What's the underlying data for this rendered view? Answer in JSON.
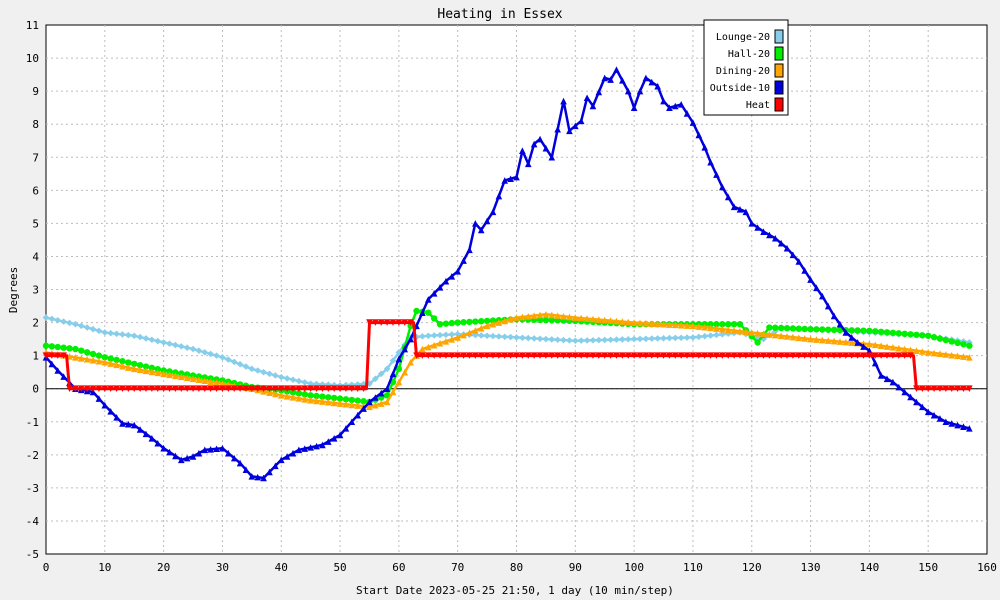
{
  "chart_data": {
    "type": "line",
    "title": "Heating in Essex",
    "xlabel": "Start Date 2023-05-25 21:50, 1 day (10 min/step)",
    "ylabel": "Degrees",
    "xlim": [
      0,
      160
    ],
    "ylim": [
      -5,
      11
    ],
    "xticks": [
      0,
      10,
      20,
      30,
      40,
      50,
      60,
      70,
      80,
      90,
      100,
      110,
      120,
      130,
      140,
      150,
      160
    ],
    "yticks": [
      -5,
      -4,
      -3,
      -2,
      -1,
      0,
      1,
      2,
      3,
      4,
      5,
      6,
      7,
      8,
      9,
      10,
      11
    ],
    "grid": true,
    "legend_position": "top-right",
    "series": [
      {
        "name": "Lounge-20",
        "color": "#87ceeb",
        "marker": "diamond",
        "points": [
          [
            0,
            2.15
          ],
          [
            5,
            1.95
          ],
          [
            10,
            1.7
          ],
          [
            15,
            1.6
          ],
          [
            20,
            1.4
          ],
          [
            25,
            1.2
          ],
          [
            30,
            0.95
          ],
          [
            35,
            0.6
          ],
          [
            40,
            0.35
          ],
          [
            45,
            0.15
          ],
          [
            50,
            0.1
          ],
          [
            55,
            0.15
          ],
          [
            58,
            0.6
          ],
          [
            60,
            1.1
          ],
          [
            62,
            1.55
          ],
          [
            65,
            1.6
          ],
          [
            70,
            1.65
          ],
          [
            80,
            1.55
          ],
          [
            90,
            1.45
          ],
          [
            100,
            1.5
          ],
          [
            110,
            1.55
          ],
          [
            118,
            1.7
          ],
          [
            122,
            1.5
          ],
          [
            125,
            1.85
          ],
          [
            130,
            1.8
          ],
          [
            140,
            1.7
          ],
          [
            150,
            1.6
          ],
          [
            157,
            1.4
          ]
        ]
      },
      {
        "name": "Hall-20",
        "color": "#00ee00",
        "marker": "circle",
        "points": [
          [
            0,
            1.3
          ],
          [
            5,
            1.2
          ],
          [
            10,
            0.95
          ],
          [
            15,
            0.75
          ],
          [
            20,
            0.55
          ],
          [
            25,
            0.4
          ],
          [
            30,
            0.25
          ],
          [
            35,
            0.05
          ],
          [
            40,
            -0.05
          ],
          [
            45,
            -0.2
          ],
          [
            50,
            -0.3
          ],
          [
            55,
            -0.4
          ],
          [
            58,
            -0.2
          ],
          [
            60,
            0.6
          ],
          [
            62,
            1.9
          ],
          [
            63,
            2.35
          ],
          [
            65,
            2.3
          ],
          [
            67,
            1.95
          ],
          [
            70,
            2.0
          ],
          [
            80,
            2.1
          ],
          [
            90,
            2.05
          ],
          [
            100,
            1.95
          ],
          [
            110,
            1.95
          ],
          [
            118,
            1.95
          ],
          [
            121,
            1.4
          ],
          [
            123,
            1.85
          ],
          [
            130,
            1.8
          ],
          [
            140,
            1.75
          ],
          [
            150,
            1.6
          ],
          [
            157,
            1.3
          ]
        ]
      },
      {
        "name": "Dining-20",
        "color": "#ffa500",
        "marker": "triangle",
        "points": [
          [
            0,
            1.1
          ],
          [
            5,
            0.95
          ],
          [
            10,
            0.8
          ],
          [
            15,
            0.6
          ],
          [
            20,
            0.45
          ],
          [
            25,
            0.3
          ],
          [
            30,
            0.15
          ],
          [
            35,
            0.0
          ],
          [
            40,
            -0.2
          ],
          [
            45,
            -0.35
          ],
          [
            50,
            -0.45
          ],
          [
            55,
            -0.55
          ],
          [
            58,
            -0.4
          ],
          [
            60,
            0.2
          ],
          [
            62,
            0.8
          ],
          [
            64,
            1.2
          ],
          [
            70,
            1.55
          ],
          [
            75,
            1.9
          ],
          [
            80,
            2.15
          ],
          [
            85,
            2.25
          ],
          [
            90,
            2.15
          ],
          [
            100,
            2.0
          ],
          [
            110,
            1.9
          ],
          [
            120,
            1.7
          ],
          [
            130,
            1.5
          ],
          [
            140,
            1.35
          ],
          [
            150,
            1.1
          ],
          [
            157,
            0.95
          ]
        ]
      },
      {
        "name": "Outside-10",
        "color": "#0000dd",
        "marker": "triangle",
        "points": [
          [
            0,
            0.95
          ],
          [
            2,
            0.55
          ],
          [
            5,
            0.0
          ],
          [
            8,
            -0.1
          ],
          [
            10,
            -0.5
          ],
          [
            13,
            -1.05
          ],
          [
            15,
            -1.1
          ],
          [
            18,
            -1.5
          ],
          [
            20,
            -1.8
          ],
          [
            23,
            -2.15
          ],
          [
            25,
            -2.05
          ],
          [
            27,
            -1.85
          ],
          [
            30,
            -1.8
          ],
          [
            33,
            -2.25
          ],
          [
            35,
            -2.65
          ],
          [
            37,
            -2.7
          ],
          [
            40,
            -2.15
          ],
          [
            43,
            -1.85
          ],
          [
            47,
            -1.7
          ],
          [
            50,
            -1.4
          ],
          [
            53,
            -0.8
          ],
          [
            55,
            -0.4
          ],
          [
            58,
            0.0
          ],
          [
            60,
            0.9
          ],
          [
            62,
            1.5
          ],
          [
            65,
            2.7
          ],
          [
            68,
            3.25
          ],
          [
            70,
            3.55
          ],
          [
            72,
            4.2
          ],
          [
            73,
            5.0
          ],
          [
            74,
            4.8
          ],
          [
            76,
            5.35
          ],
          [
            78,
            6.3
          ],
          [
            80,
            6.4
          ],
          [
            81,
            7.2
          ],
          [
            82,
            6.8
          ],
          [
            83,
            7.4
          ],
          [
            84,
            7.55
          ],
          [
            86,
            7.0
          ],
          [
            88,
            8.7
          ],
          [
            89,
            7.8
          ],
          [
            91,
            8.1
          ],
          [
            92,
            8.8
          ],
          [
            93,
            8.55
          ],
          [
            95,
            9.4
          ],
          [
            96,
            9.35
          ],
          [
            97,
            9.65
          ],
          [
            99,
            9.0
          ],
          [
            100,
            8.5
          ],
          [
            101,
            9.0
          ],
          [
            102,
            9.4
          ],
          [
            104,
            9.15
          ],
          [
            105,
            8.7
          ],
          [
            106,
            8.5
          ],
          [
            108,
            8.6
          ],
          [
            110,
            8.05
          ],
          [
            112,
            7.3
          ],
          [
            113,
            6.85
          ],
          [
            115,
            6.1
          ],
          [
            117,
            5.5
          ],
          [
            119,
            5.35
          ],
          [
            120,
            5.0
          ],
          [
            122,
            4.75
          ],
          [
            124,
            4.55
          ],
          [
            126,
            4.25
          ],
          [
            128,
            3.85
          ],
          [
            130,
            3.3
          ],
          [
            132,
            2.8
          ],
          [
            134,
            2.2
          ],
          [
            136,
            1.7
          ],
          [
            138,
            1.4
          ],
          [
            140,
            1.15
          ],
          [
            142,
            0.4
          ],
          [
            144,
            0.2
          ],
          [
            147,
            -0.25
          ],
          [
            150,
            -0.7
          ],
          [
            153,
            -1.0
          ],
          [
            157,
            -1.2
          ]
        ]
      },
      {
        "name": "Heat",
        "color": "#ff0000",
        "marker": "triangle-down",
        "step": true,
        "points": [
          [
            0,
            1
          ],
          [
            3.5,
            1
          ],
          [
            4,
            0
          ],
          [
            54.5,
            0
          ],
          [
            55,
            2
          ],
          [
            62.5,
            2
          ],
          [
            63,
            1
          ],
          [
            147.5,
            1
          ],
          [
            148,
            0
          ],
          [
            157,
            0
          ]
        ]
      }
    ]
  }
}
